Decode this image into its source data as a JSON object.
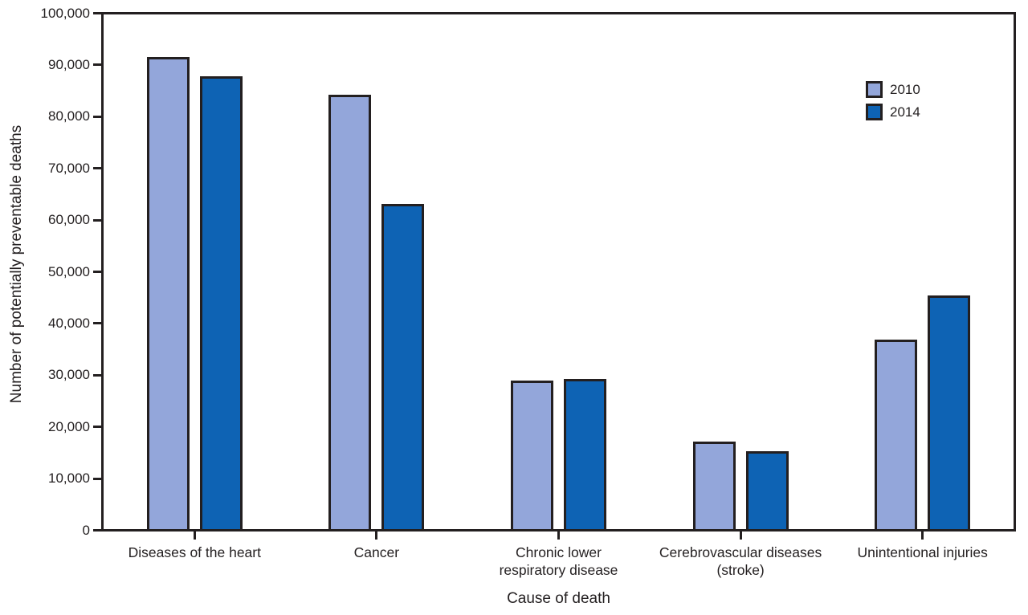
{
  "chart_data": {
    "type": "bar",
    "title": "",
    "categories": [
      "Diseases of the heart",
      "Cancer",
      "Chronic lower\nrespiratory disease",
      "Cerebrovascular diseases\n(stroke)",
      "Unintentional injuries"
    ],
    "series": [
      {
        "name": "2010",
        "color": "#93a6da",
        "values": [
          91757,
          84443,
          28831,
          16973,
          36836
        ]
      },
      {
        "name": "2014",
        "color": "#0e63b4",
        "values": [
          87950,
          63209,
          29232,
          15175,
          45331
        ]
      }
    ],
    "xlabel": "Cause of death",
    "ylabel": "Number of potentially preventable deaths",
    "ylim": [
      0,
      100000
    ],
    "y_ticks": [
      0,
      10000,
      20000,
      30000,
      40000,
      50000,
      60000,
      70000,
      80000,
      90000,
      100000
    ],
    "y_tick_labels": [
      "0",
      "10,000",
      "20,000",
      "30,000",
      "40,000",
      "50,000",
      "60,000",
      "70,000",
      "80,000",
      "90,000",
      "100,000"
    ],
    "grid": false,
    "legend_position": "upper-right",
    "bar_edge_color": "#231f20"
  },
  "colors": {
    "text": "#231f20",
    "axis": "#231f20",
    "background": "#ffffff",
    "series_2010": "#93a6da",
    "series_2014": "#0e63b4"
  }
}
